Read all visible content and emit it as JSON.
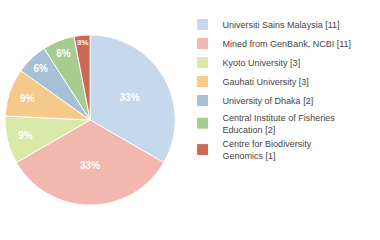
{
  "chart_data": {
    "type": "pie",
    "categories": [
      "Universiti Sains Malaysia [11]",
      "Mined from GenBank, NCBI [11]",
      "Kyoto University [3]",
      "Gauhati University [3]",
      "University of Dhaka [2]",
      "Central Institute of Fisheries\nEducation [2]",
      "Centre for Biodiversity\nGenomics [1]"
    ],
    "values": [
      33,
      33,
      9,
      9,
      6,
      6,
      3
    ],
    "value_labels": [
      "33%",
      "33%",
      "9%",
      "9%",
      "6%",
      "6%",
      "3%"
    ],
    "colors": [
      "#c5d8ec",
      "#f2b8b0",
      "#d8e9a8",
      "#f5c98a",
      "#a8c0d6",
      "#a8cc90",
      "#cc6655"
    ],
    "data_labels": true,
    "legend": "right"
  }
}
